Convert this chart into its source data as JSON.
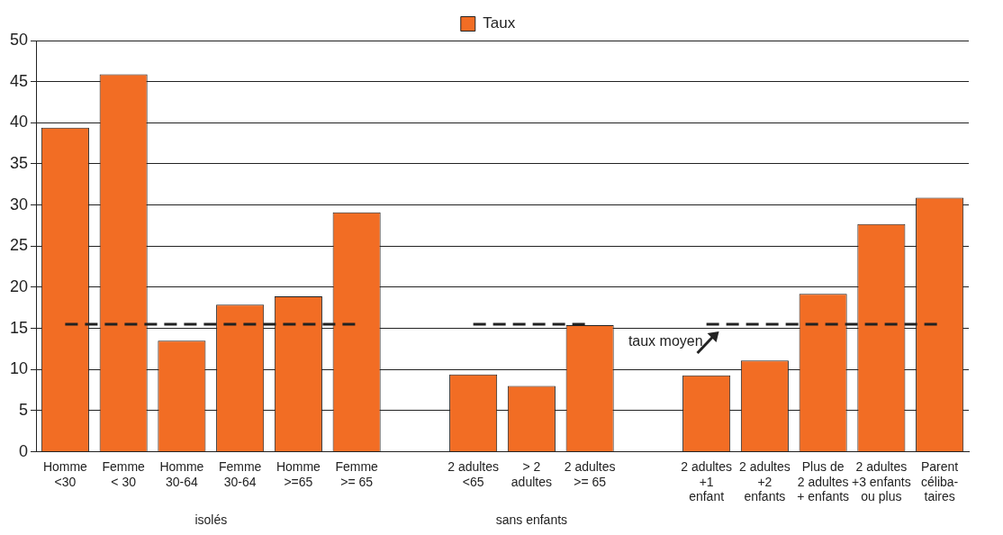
{
  "chart_data": {
    "type": "bar",
    "categories": [
      "Homme\n<30",
      "Femme\n< 30",
      "Homme\n30-64",
      "Femme\n30-64",
      "Homme\n>=65",
      "Femme\n>= 65",
      null,
      "2 adultes\n<65",
      "> 2\nadultes",
      "2 adultes\n>= 65",
      null,
      "2 adultes\n+1\nenfant",
      "2 adultes\n+2\nenfants",
      "Plus de\n2 adultes\n+ enfants",
      "2 adultes\n+3 enfants\nou plus",
      "Parent\ncéliba-\ntaires"
    ],
    "series": [
      {
        "name": "Taux",
        "color": "#f26d24",
        "values": [
          39.4,
          45.9,
          13.5,
          17.9,
          18.9,
          29.1,
          null,
          9.4,
          8.0,
          15.4,
          null,
          9.3,
          11.1,
          19.2,
          27.7,
          30.9
        ]
      },
      {
        "type": "line",
        "color": "#222222",
        "line_style": "dashed",
        "marker": "none",
        "values": [
          15.5,
          15.5,
          15.5,
          15.5,
          15.5,
          15.5,
          null,
          15.5,
          15.5,
          15.5,
          null,
          15.5,
          15.5,
          15.5,
          15.5,
          15.5
        ]
      }
    ],
    "annotations": [
      "taux moyen",
      "isolés",
      "sans enfants"
    ],
    "ylim": [
      0,
      50
    ],
    "yticks": [
      0,
      5,
      10,
      15,
      20,
      25,
      30,
      35,
      40,
      45,
      50
    ],
    "grid": "y",
    "legend": "top"
  }
}
